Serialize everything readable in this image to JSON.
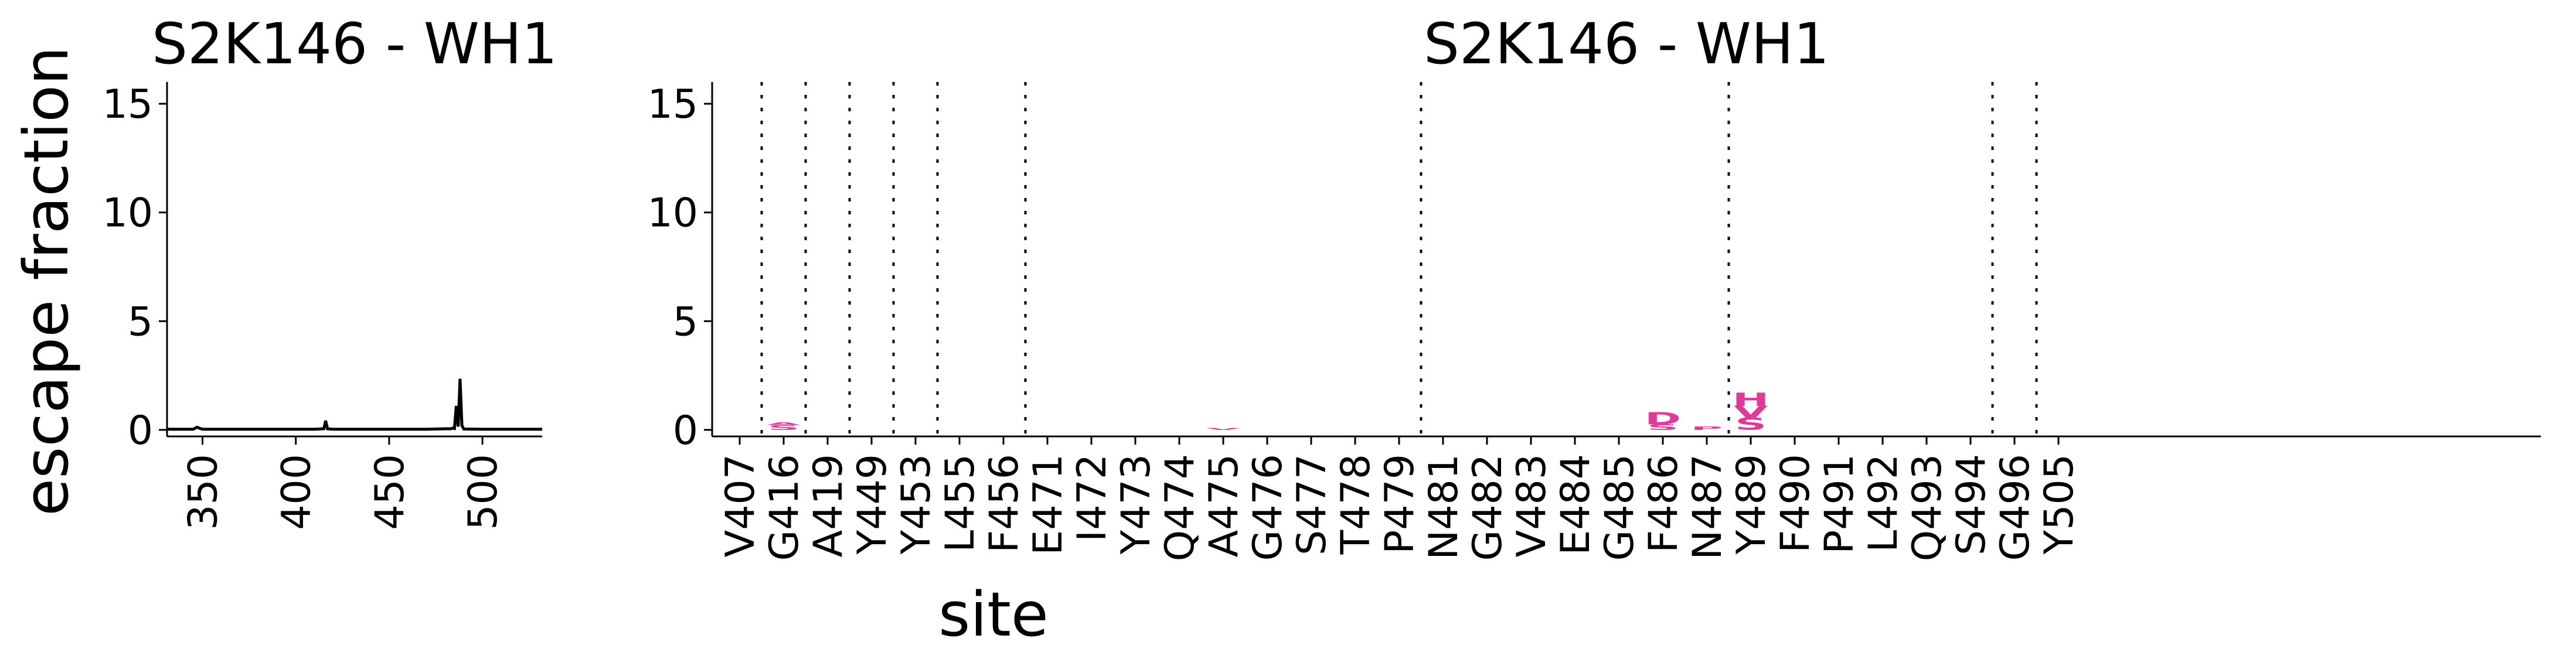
{
  "chart_data": [
    {
      "type": "line",
      "title": "S2K146 - WH1",
      "xlabel": "",
      "ylabel": "escape fraction",
      "xlim": [
        331,
        532
      ],
      "ylim": [
        -0.3,
        16
      ],
      "xticks": [
        350,
        400,
        450,
        500
      ],
      "yticks": [
        0,
        5,
        10,
        15
      ],
      "x": [
        331,
        345,
        347,
        350,
        380,
        410,
        415,
        416,
        417,
        420,
        450,
        470,
        480,
        483,
        484,
        485,
        486,
        487,
        488,
        489,
        490,
        500,
        532
      ],
      "y": [
        0.03,
        0.03,
        0.12,
        0.03,
        0.03,
        0.03,
        0.05,
        0.42,
        0.05,
        0.03,
        0.03,
        0.03,
        0.05,
        0.05,
        0.08,
        0.06,
        1.1,
        0.15,
        2.35,
        0.2,
        0.04,
        0.03,
        0.03
      ],
      "line_color": "#000000"
    },
    {
      "type": "logo",
      "title": "S2K146 - WH1",
      "xlabel": "site",
      "ylabel": "",
      "ylim": [
        -0.3,
        16
      ],
      "yticks": [
        0,
        5,
        10,
        15
      ],
      "sites": [
        "V407",
        "G416",
        "A419",
        "Y449",
        "Y453",
        "L455",
        "F456",
        "E471",
        "I472",
        "Y473",
        "Q474",
        "A475",
        "G476",
        "S477",
        "T478",
        "P479",
        "N481",
        "G482",
        "V483",
        "E484",
        "G485",
        "F486",
        "N487",
        "Y489",
        "F490",
        "P491",
        "L492",
        "Q493",
        "S494",
        "G496",
        "Y505"
      ],
      "groups": [
        [
          0
        ],
        [
          1
        ],
        [
          2
        ],
        [
          3
        ],
        [
          4
        ],
        [
          5,
          6
        ],
        [
          7,
          8,
          9,
          10,
          11,
          12,
          13,
          14,
          15
        ],
        [
          16,
          17,
          18,
          19,
          20,
          21,
          22
        ],
        [
          23,
          24,
          25,
          26,
          27,
          28
        ],
        [
          29
        ],
        [
          30
        ]
      ],
      "letters": [
        {
          "site": "G416",
          "letter": "S",
          "height": 0.22,
          "color": "#555555"
        },
        {
          "site": "G416",
          "letter": "A",
          "height": 0.12,
          "color": "#888888"
        },
        {
          "site": "A475",
          "letter": "V",
          "height": 0.08,
          "color": "#e0399a"
        },
        {
          "site": "F486",
          "letter": "S",
          "height": 0.25,
          "color": "#e0399a"
        },
        {
          "site": "F486",
          "letter": "D",
          "height": 0.55,
          "color": "#e0399a"
        },
        {
          "site": "N487",
          "letter": "P",
          "height": 0.15,
          "color": "#e0399a"
        },
        {
          "site": "Y489",
          "letter": "S",
          "height": 0.55,
          "color": "#e0399a"
        },
        {
          "site": "Y489",
          "letter": "V",
          "height": 0.55,
          "color": "#e0399a"
        },
        {
          "site": "Y489",
          "letter": "H",
          "height": 0.6,
          "color": "#e0399a"
        }
      ],
      "highlight_color": "#e0399a"
    }
  ]
}
